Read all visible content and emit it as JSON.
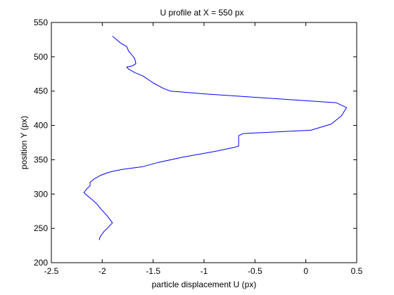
{
  "chart_data": {
    "type": "line",
    "title": "U profile at X = 550 px",
    "xlabel": "particle displacement U (px)",
    "ylabel": "position Y (px)",
    "xlim": [
      -2.5,
      0.5
    ],
    "ylim": [
      200,
      550
    ],
    "xticks": [
      -2.5,
      -2,
      -1.5,
      -1,
      -0.5,
      0,
      0.5
    ],
    "xtick_labels": [
      "-2.5",
      "-2",
      "-1.5",
      "-1",
      "-0.5",
      "0",
      "0.5"
    ],
    "yticks": [
      200,
      250,
      300,
      350,
      400,
      450,
      500,
      550
    ],
    "ytick_labels": [
      "200",
      "250",
      "300",
      "350",
      "400",
      "450",
      "500",
      "550"
    ],
    "grid": false,
    "line_color": "#0000ff",
    "series": [
      {
        "x": [
          -2.03,
          -2.02,
          -2.0,
          -1.98,
          -1.95,
          -1.92,
          -1.9,
          -1.95,
          -2.0,
          -2.05,
          -2.1,
          -2.15,
          -2.18,
          -2.15,
          -2.12,
          -2.12,
          -2.08,
          -2.02,
          -1.95,
          -1.9,
          -1.8,
          -1.6,
          -1.45,
          -1.2,
          -0.9,
          -0.7,
          -0.66,
          -0.66,
          -0.62,
          -0.5,
          0.05,
          0.25,
          0.35,
          0.4,
          0.3,
          0.0,
          -0.5,
          -1.0,
          -1.33,
          -1.4,
          -1.5,
          -1.6,
          -1.68,
          -1.74,
          -1.76,
          -1.7,
          -1.67,
          -1.68,
          -1.72,
          -1.74,
          -1.76,
          -1.82,
          -1.9
        ],
        "y": [
          233,
          238,
          242,
          246,
          250,
          255,
          258,
          268,
          276,
          285,
          292,
          298,
          302,
          308,
          312,
          317,
          322,
          327,
          331,
          333,
          336,
          340,
          346,
          354,
          362,
          368,
          370,
          385,
          388,
          389,
          393,
          402,
          414,
          426,
          433,
          436,
          441,
          446,
          450,
          454,
          462,
          472,
          477,
          482,
          485,
          487,
          490,
          497,
          505,
          508,
          515,
          520,
          530
        ]
      }
    ]
  }
}
